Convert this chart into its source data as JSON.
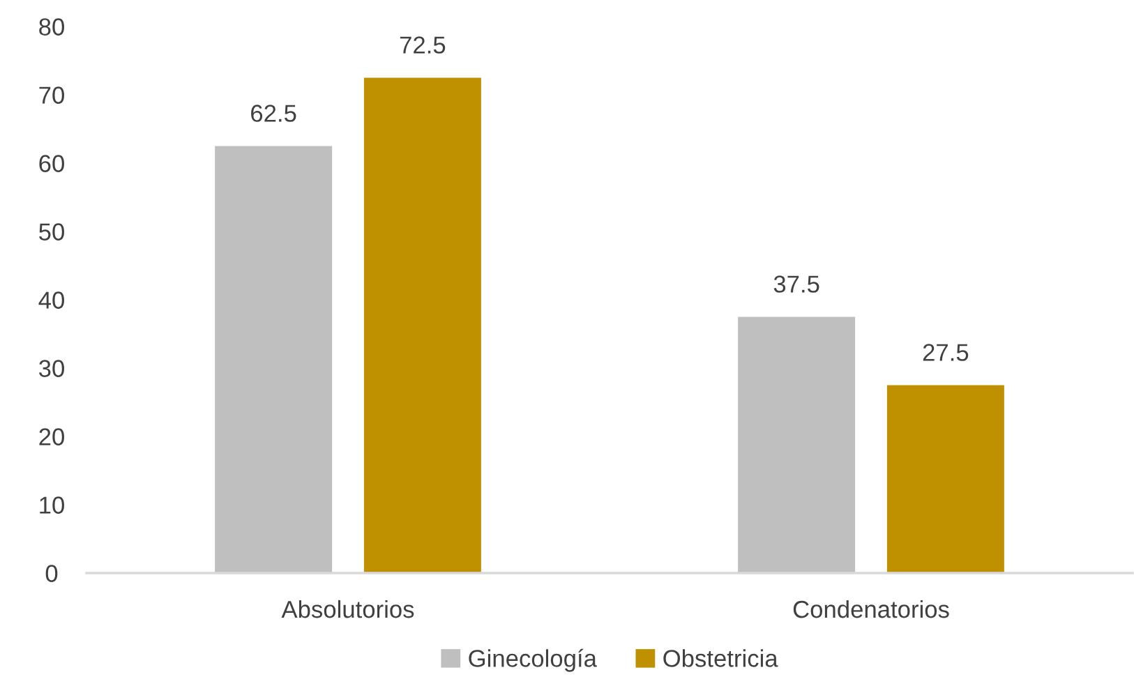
{
  "chart_data": {
    "type": "bar",
    "categories": [
      "Absolutorios",
      "Condenatorios"
    ],
    "series": [
      {
        "name": "Ginecología",
        "color": "#bfbfbf",
        "values": [
          62.5,
          37.5
        ]
      },
      {
        "name": "Obstetricia",
        "color": "#bf9000",
        "values": [
          72.5,
          27.5
        ]
      }
    ],
    "ylim": [
      0,
      80
    ],
    "yticks": [
      0,
      10,
      20,
      30,
      40,
      50,
      60,
      70,
      80
    ],
    "data_labels": true,
    "legend": "bottom",
    "grid": false
  }
}
